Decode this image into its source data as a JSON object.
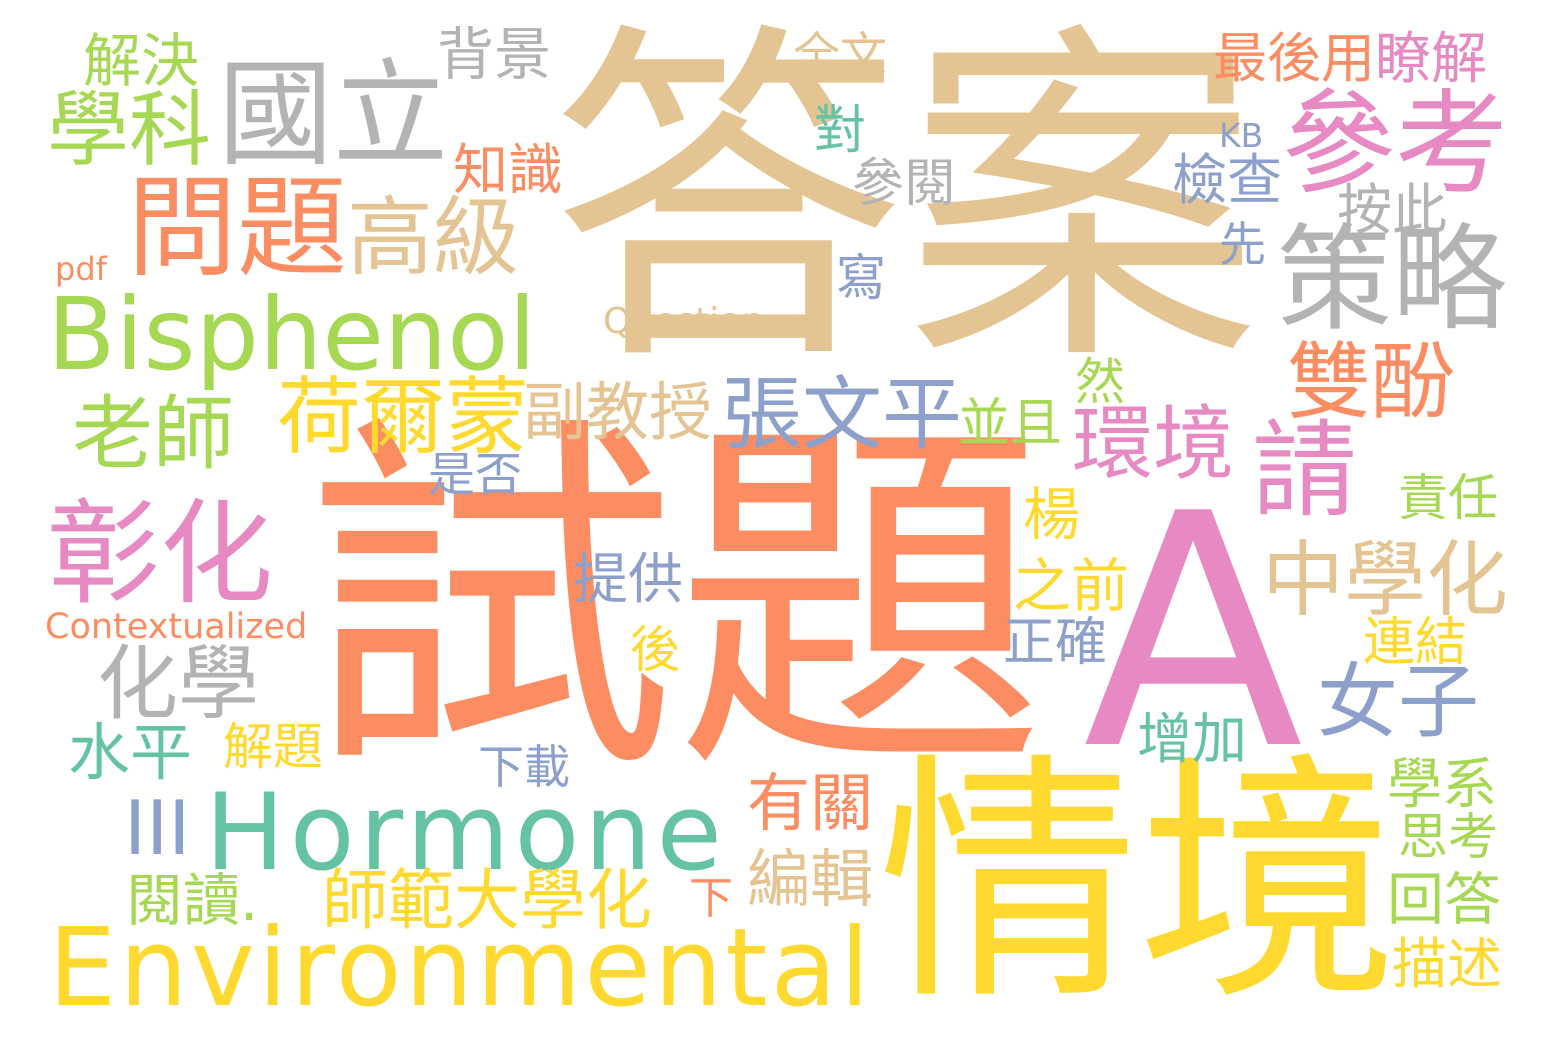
{
  "background": "#ffffff",
  "palette": {
    "orange": "#fc8d62",
    "teal": "#66c2a5",
    "blue": "#8da0cb",
    "pink": "#e78ac3",
    "lime": "#a6d854",
    "yellow": "#ffd92f",
    "tan": "#e5c494",
    "gray": "#b3b3b3"
  },
  "words": [
    {
      "text": "答案",
      "color": "#e5c494"
    },
    {
      "text": "試題",
      "color": "#fc8d62"
    },
    {
      "text": "A",
      "color": "#e78ac3"
    },
    {
      "text": "情境",
      "color": "#ffd92f"
    },
    {
      "text": "Environmental",
      "color": "#ffd92f"
    },
    {
      "text": "Hormone",
      "color": "#66c2a5"
    },
    {
      "text": "Bisphenol",
      "color": "#a6d854"
    },
    {
      "text": "國立",
      "color": "#b3b3b3"
    },
    {
      "text": "學科",
      "color": "#a6d854"
    },
    {
      "text": "解決",
      "color": "#a6d854"
    },
    {
      "text": "背景",
      "color": "#b3b3b3"
    },
    {
      "text": "全文",
      "color": "#e5c494"
    },
    {
      "text": "最後用",
      "color": "#fc8d62"
    },
    {
      "text": "瞭解",
      "color": "#e78ac3"
    },
    {
      "text": "參考",
      "color": "#e78ac3"
    },
    {
      "text": "KB",
      "color": "#8da0cb"
    },
    {
      "text": "對",
      "color": "#66c2a5"
    },
    {
      "text": "知識",
      "color": "#fc8d62"
    },
    {
      "text": "參閱",
      "color": "#b3b3b3"
    },
    {
      "text": "檢查",
      "color": "#8da0cb"
    },
    {
      "text": "問題",
      "color": "#fc8d62"
    },
    {
      "text": "高級",
      "color": "#e5c494"
    },
    {
      "text": "按此",
      "color": "#b3b3b3"
    },
    {
      "text": "pdf",
      "color": "#fc8d62"
    },
    {
      "text": "先",
      "color": "#8da0cb"
    },
    {
      "text": "策略",
      "color": "#b3b3b3"
    },
    {
      "text": "寫",
      "color": "#8da0cb"
    },
    {
      "text": "Question",
      "color": "#e5c494"
    },
    {
      "text": "雙酚",
      "color": "#fc8d62"
    },
    {
      "text": "然",
      "color": "#a6d854"
    },
    {
      "text": "荷爾蒙",
      "color": "#ffd92f"
    },
    {
      "text": "副教授",
      "color": "#e5c494"
    },
    {
      "text": "張文平",
      "color": "#8da0cb"
    },
    {
      "text": "並且",
      "color": "#a6d854"
    },
    {
      "text": "環境",
      "color": "#e78ac3"
    },
    {
      "text": "請",
      "color": "#e78ac3"
    },
    {
      "text": "老師",
      "color": "#a6d854"
    },
    {
      "text": "是否",
      "color": "#8da0cb"
    },
    {
      "text": "責任",
      "color": "#a6d854"
    },
    {
      "text": "楊",
      "color": "#ffd92f"
    },
    {
      "text": "彰化",
      "color": "#e78ac3"
    },
    {
      "text": "中學化",
      "color": "#e5c494"
    },
    {
      "text": "之前",
      "color": "#ffd92f"
    },
    {
      "text": "提供",
      "color": "#8da0cb"
    },
    {
      "text": "Contextualized",
      "color": "#fc8d62"
    },
    {
      "text": "連結",
      "color": "#ffd92f"
    },
    {
      "text": "正確",
      "color": "#8da0cb"
    },
    {
      "text": "後",
      "color": "#ffd92f"
    },
    {
      "text": "化學",
      "color": "#b3b3b3"
    },
    {
      "text": "女子",
      "color": "#8da0cb"
    },
    {
      "text": "解題",
      "color": "#ffd92f"
    },
    {
      "text": "水平",
      "color": "#66c2a5"
    },
    {
      "text": "增加",
      "color": "#66c2a5"
    },
    {
      "text": "下載",
      "color": "#8da0cb"
    },
    {
      "text": "有關",
      "color": "#fc8d62"
    },
    {
      "text": "學系",
      "color": "#a6d854"
    },
    {
      "text": "III",
      "color": "#8da0cb"
    },
    {
      "text": "思考",
      "color": "#a6d854"
    },
    {
      "text": "編輯",
      "color": "#e5c494"
    },
    {
      "text": "閱讀.",
      "color": "#a6d854"
    },
    {
      "text": "師範大學化",
      "color": "#ffd92f"
    },
    {
      "text": "下",
      "color": "#fc8d62"
    },
    {
      "text": "回答",
      "color": "#a6d854"
    },
    {
      "text": "描述",
      "color": "#ffd92f"
    }
  ]
}
